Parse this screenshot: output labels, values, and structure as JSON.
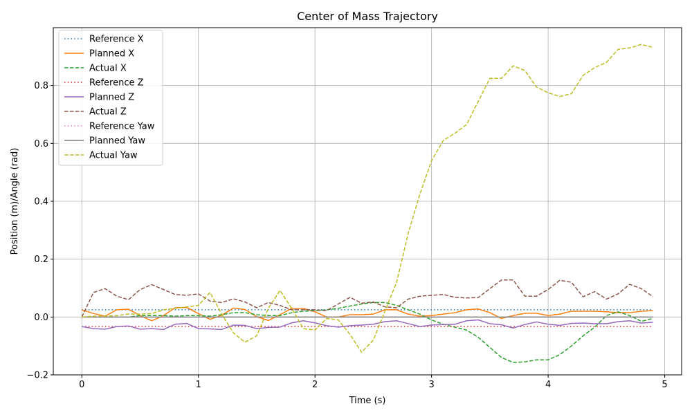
{
  "chart_data": {
    "type": "line",
    "title": "Center of Mass Trajectory",
    "xlabel": "Time (s)",
    "ylabel": "Position (m)/Angle (rad)",
    "xlim": [
      -0.245,
      5.145
    ],
    "ylim": [
      -0.2,
      1.0
    ],
    "xticks": [
      0,
      1,
      2,
      3,
      4,
      5
    ],
    "xtick_labels": [
      "0",
      "1",
      "2",
      "3",
      "4",
      "5"
    ],
    "yticks": [
      -0.2,
      0.0,
      0.2,
      0.4,
      0.6,
      0.8
    ],
    "ytick_labels": [
      "−0.2",
      "0.0",
      "0.2",
      "0.4",
      "0.6",
      "0.8"
    ],
    "grid": true,
    "legend_position": "upper-left",
    "x": [
      0.0,
      0.1,
      0.2,
      0.3,
      0.4,
      0.5,
      0.6,
      0.7,
      0.8,
      0.9,
      1.0,
      1.1,
      1.2,
      1.3,
      1.4,
      1.5,
      1.6,
      1.7,
      1.8,
      1.9,
      2.0,
      2.1,
      2.2,
      2.3,
      2.4,
      2.5,
      2.6,
      2.7,
      2.8,
      2.9,
      3.0,
      3.1,
      3.2,
      3.3,
      3.4,
      3.5,
      3.6,
      3.7,
      3.8,
      3.9,
      4.0,
      4.1,
      4.2,
      4.3,
      4.4,
      4.5,
      4.6,
      4.7,
      4.8,
      4.9
    ],
    "series": [
      {
        "name": "Reference X",
        "style": "dotted",
        "color": "#1f77b4",
        "values": [
          0.025,
          0.025,
          0.025,
          0.025,
          0.025,
          0.025,
          0.025,
          0.025,
          0.025,
          0.025,
          0.025,
          0.025,
          0.025,
          0.025,
          0.025,
          0.025,
          0.025,
          0.025,
          0.025,
          0.025,
          0.025,
          0.025,
          0.025,
          0.025,
          0.025,
          0.025,
          0.025,
          0.025,
          0.025,
          0.025,
          0.025,
          0.025,
          0.025,
          0.025,
          0.025,
          0.025,
          0.025,
          0.025,
          0.025,
          0.025,
          0.025,
          0.025,
          0.025,
          0.025,
          0.025,
          0.025,
          0.025,
          0.025,
          0.025,
          0.025
        ]
      },
      {
        "name": "Planned X",
        "style": "solid",
        "color": "#ff7f0e",
        "values": [
          0.025,
          0.012,
          0.003,
          0.025,
          0.027,
          0.005,
          -0.013,
          0.005,
          0.032,
          0.033,
          0.012,
          -0.008,
          0.006,
          0.031,
          0.026,
          0.001,
          -0.012,
          0.008,
          0.03,
          0.03,
          0.018,
          0.0,
          0.0,
          0.008,
          0.008,
          0.01,
          0.025,
          0.025,
          0.01,
          0.003,
          0.005,
          0.01,
          0.015,
          0.025,
          0.028,
          0.015,
          -0.005,
          0.005,
          0.013,
          0.013,
          0.005,
          0.01,
          0.02,
          0.02,
          0.02,
          0.018,
          0.015,
          0.015,
          0.02,
          0.022
        ]
      },
      {
        "name": "Actual X",
        "style": "dashed",
        "color": "#2ca02c",
        "values": [
          0.0,
          0.0,
          0.0,
          0.0,
          0.0,
          0.005,
          0.005,
          0.005,
          0.003,
          0.005,
          0.005,
          0.003,
          0.008,
          0.015,
          0.015,
          0.008,
          0.005,
          0.005,
          0.015,
          0.02,
          0.022,
          0.025,
          0.03,
          0.038,
          0.045,
          0.05,
          0.05,
          0.04,
          0.025,
          0.01,
          -0.01,
          -0.025,
          -0.035,
          -0.045,
          -0.07,
          -0.105,
          -0.14,
          -0.157,
          -0.155,
          -0.148,
          -0.148,
          -0.13,
          -0.1,
          -0.065,
          -0.035,
          0.005,
          0.018,
          0.005,
          -0.015,
          -0.005
        ]
      },
      {
        "name": "Reference Z",
        "style": "dotted",
        "color": "#d62728",
        "values": [
          -0.033,
          -0.033,
          -0.033,
          -0.033,
          -0.033,
          -0.033,
          -0.033,
          -0.033,
          -0.033,
          -0.033,
          -0.033,
          -0.033,
          -0.033,
          -0.033,
          -0.033,
          -0.033,
          -0.033,
          -0.033,
          -0.033,
          -0.033,
          -0.033,
          -0.033,
          -0.033,
          -0.033,
          -0.033,
          -0.033,
          -0.033,
          -0.033,
          -0.033,
          -0.033,
          -0.033,
          -0.033,
          -0.033,
          -0.033,
          -0.033,
          -0.033,
          -0.033,
          -0.033,
          -0.033,
          -0.033,
          -0.033,
          -0.033,
          -0.033,
          -0.033,
          -0.033,
          -0.033,
          -0.033,
          -0.033,
          -0.033,
          -0.033
        ]
      },
      {
        "name": "Planned Z",
        "style": "solid",
        "color": "#9467bd",
        "values": [
          -0.033,
          -0.04,
          -0.042,
          -0.033,
          -0.031,
          -0.042,
          -0.04,
          -0.043,
          -0.025,
          -0.022,
          -0.04,
          -0.041,
          -0.043,
          -0.028,
          -0.029,
          -0.04,
          -0.036,
          -0.035,
          -0.02,
          -0.013,
          -0.02,
          -0.03,
          -0.035,
          -0.03,
          -0.028,
          -0.025,
          -0.016,
          -0.013,
          -0.023,
          -0.033,
          -0.028,
          -0.026,
          -0.025,
          -0.013,
          -0.01,
          -0.023,
          -0.027,
          -0.038,
          -0.026,
          -0.017,
          -0.025,
          -0.029,
          -0.022,
          -0.021,
          -0.023,
          -0.023,
          -0.016,
          -0.013,
          -0.021,
          -0.018
        ]
      },
      {
        "name": "Actual Z",
        "style": "dashed",
        "color": "#8c564b",
        "values": [
          0.0,
          0.085,
          0.098,
          0.072,
          0.06,
          0.095,
          0.112,
          0.095,
          0.078,
          0.075,
          0.08,
          0.055,
          0.05,
          0.063,
          0.052,
          0.032,
          0.05,
          0.04,
          0.025,
          0.025,
          0.025,
          0.022,
          0.045,
          0.068,
          0.048,
          0.052,
          0.035,
          0.032,
          0.062,
          0.072,
          0.075,
          0.078,
          0.068,
          0.066,
          0.067,
          0.098,
          0.128,
          0.128,
          0.072,
          0.072,
          0.095,
          0.127,
          0.12,
          0.07,
          0.088,
          0.062,
          0.08,
          0.113,
          0.098,
          0.07
        ]
      },
      {
        "name": "Reference Yaw",
        "style": "dotted",
        "color": "#e377c2",
        "values": [
          0.0,
          0.0,
          0.0,
          0.0,
          0.0,
          0.0,
          0.0,
          0.0,
          0.0,
          0.0,
          0.0,
          0.0,
          0.0,
          0.0,
          0.0,
          0.0,
          0.0,
          0.0,
          0.0,
          0.0,
          0.0,
          0.0,
          0.0,
          0.0,
          0.0,
          0.0,
          0.0,
          0.0,
          0.0,
          0.0,
          0.0,
          0.0,
          0.0,
          0.0,
          0.0,
          0.0,
          0.0,
          0.0,
          0.0,
          0.0,
          0.0,
          0.0,
          0.0,
          0.0,
          0.0,
          0.0,
          0.0,
          0.0,
          0.0,
          0.0
        ]
      },
      {
        "name": "Planned Yaw",
        "style": "solid",
        "color": "#7f7f7f",
        "values": [
          0.0,
          0.0,
          0.0,
          0.0,
          0.0,
          0.0,
          0.0,
          0.0,
          0.0,
          0.0,
          0.0,
          0.0,
          0.0,
          0.0,
          0.0,
          0.0,
          0.0,
          0.0,
          0.0,
          0.0,
          0.0,
          0.0,
          0.0,
          0.0,
          0.0,
          0.0,
          0.0,
          0.0,
          0.0,
          0.0,
          0.0,
          0.0,
          0.0,
          0.0,
          0.0,
          0.0,
          0.0,
          0.0,
          0.0,
          0.0,
          0.0,
          0.0,
          0.0,
          0.0,
          0.0,
          0.0,
          0.0,
          0.0,
          0.0,
          0.0
        ]
      },
      {
        "name": "Actual Yaw",
        "style": "dashed",
        "color": "#bcbd22",
        "values": [
          0.0,
          0.003,
          0.003,
          0.005,
          0.01,
          0.01,
          0.012,
          0.025,
          0.03,
          0.035,
          0.04,
          0.085,
          0.01,
          -0.055,
          -0.087,
          -0.065,
          0.03,
          0.092,
          0.03,
          -0.04,
          -0.045,
          -0.005,
          -0.01,
          -0.06,
          -0.122,
          -0.08,
          0.02,
          0.12,
          0.29,
          0.425,
          0.54,
          0.61,
          0.635,
          0.665,
          0.745,
          0.825,
          0.825,
          0.868,
          0.852,
          0.795,
          0.775,
          0.762,
          0.772,
          0.835,
          0.862,
          0.88,
          0.925,
          0.93,
          0.942,
          0.932
        ]
      }
    ]
  }
}
